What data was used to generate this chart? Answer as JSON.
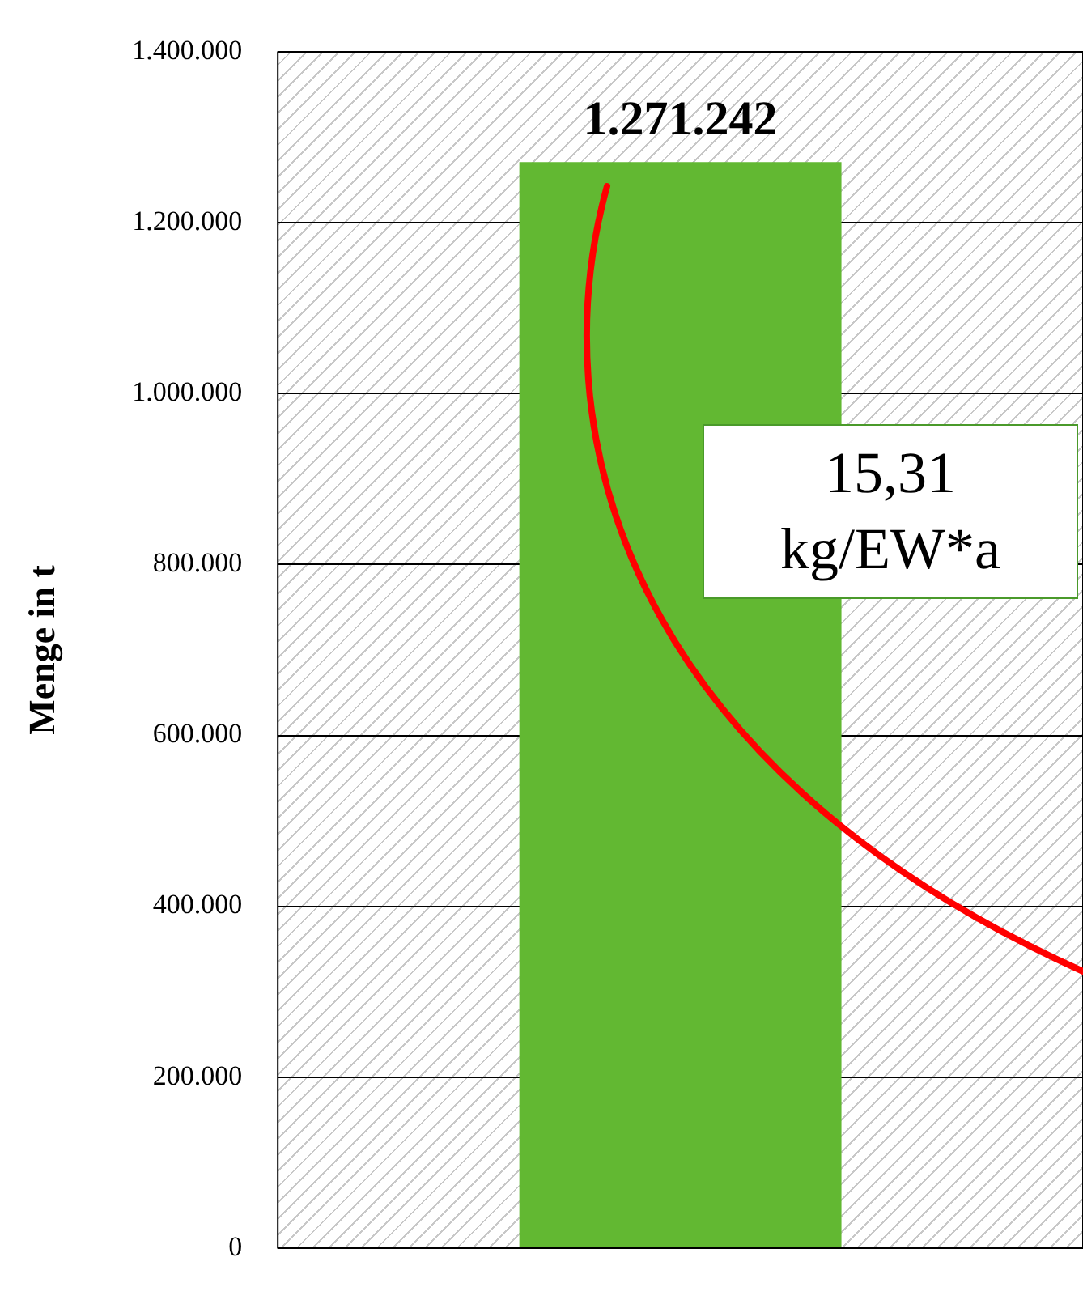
{
  "chart_data": {
    "type": "bar",
    "ylabel": "Menge in t",
    "categories": [
      null
    ],
    "values": [
      1271242
    ],
    "value_labels": [
      "1.271.242"
    ],
    "color": "#62b832",
    "ylim": [
      0,
      1400000
    ],
    "yticks": [
      {
        "value": 0,
        "label": "0"
      },
      {
        "value": 200000,
        "label": "200.000"
      },
      {
        "value": 400000,
        "label": "400.000"
      },
      {
        "value": 600000,
        "label": "600.000"
      },
      {
        "value": 800000,
        "label": "800.000"
      },
      {
        "value": 1000000,
        "label": "1.000.000"
      },
      {
        "value": 1200000,
        "label": "1.200.000"
      },
      {
        "value": 1400000,
        "label": "1.400.000"
      }
    ],
    "grid": "y",
    "annotations": [
      "15,31 kg/EW*a"
    ]
  }
}
